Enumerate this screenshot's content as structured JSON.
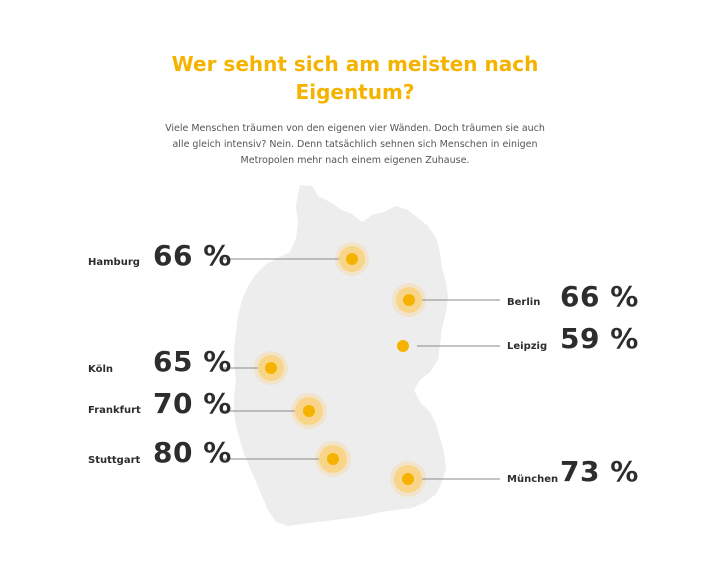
{
  "title": "Wer sehnt sich am meisten nach Eigentum?",
  "subtitle": "Viele Menschen träumen von den eigenen vier Wänden. Doch träumen sie auch alle gleich intensiv? Nein. Denn tatsächlich sehnen sich Menschen in einigen Metropolen mehr nach einem eigenen Zuhause.",
  "colors": {
    "accent": "#f5b300",
    "marker_halo": "#f9d58a",
    "map_fill": "#ededed",
    "text_dark": "#2d2d2d",
    "line": "#8a8a8a"
  },
  "chart_data": {
    "type": "map",
    "title": "Wer sehnt sich am meisten nach Eigentum?",
    "unit": "%",
    "points": [
      {
        "city": "Hamburg",
        "value": 66,
        "label": "66 %"
      },
      {
        "city": "Berlin",
        "value": 66,
        "label": "66 %"
      },
      {
        "city": "Leipzig",
        "value": 59,
        "label": "59 %"
      },
      {
        "city": "Köln",
        "value": 65,
        "label": "65 %"
      },
      {
        "city": "Frankfurt",
        "value": 70,
        "label": "70 %"
      },
      {
        "city": "Stuttgart",
        "value": 80,
        "label": "80 %"
      },
      {
        "city": "München",
        "value": 73,
        "label": "73 %"
      }
    ]
  }
}
